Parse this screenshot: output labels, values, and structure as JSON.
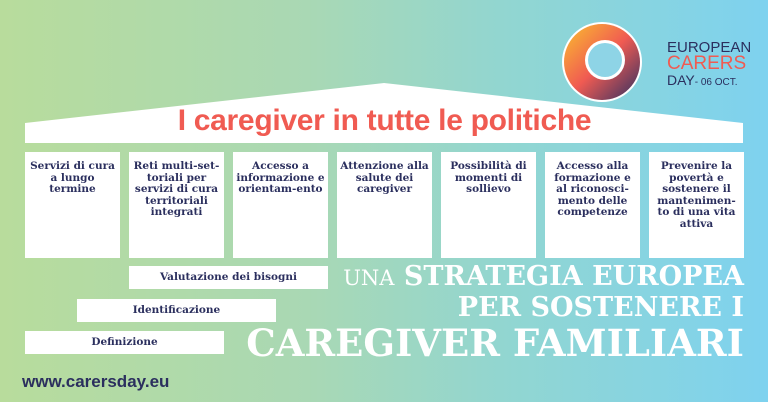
{
  "logo": {
    "line1": "EUROPEAN",
    "line2": "CARERS",
    "line3": "DAY",
    "date": "- 06 OCT."
  },
  "title": "I caregiver in tutte le politiche",
  "pillars": [
    "Servizi di cura a lungo termine",
    "Reti multi-set-toriali per servizi di cura territoriali integrati",
    "Accesso a informazione e orientam-ento",
    "Attenzione alla salute dei caregiver",
    "Possibilità di momenti di sollievo",
    "Accesso alla formazione e al riconosci-mento delle competenze",
    "Prevenire la povertà e sostenere il mantenimen-to di una vita attiva"
  ],
  "steps": [
    "Valutazione dei bisogni",
    "Identificazione",
    "Definizione"
  ],
  "strategy": {
    "una": "UNA",
    "line1": "STRATEGIA EUROPEA",
    "line2": "PER SOSTENERE I",
    "line3": "CAREGIVER FAMILIARI"
  },
  "url": "www.carersday.eu",
  "colors": {
    "accent": "#f05b52",
    "navy": "#2b2f5e",
    "bg_left": "#b8dc9c",
    "bg_right": "#7ed2ef"
  }
}
